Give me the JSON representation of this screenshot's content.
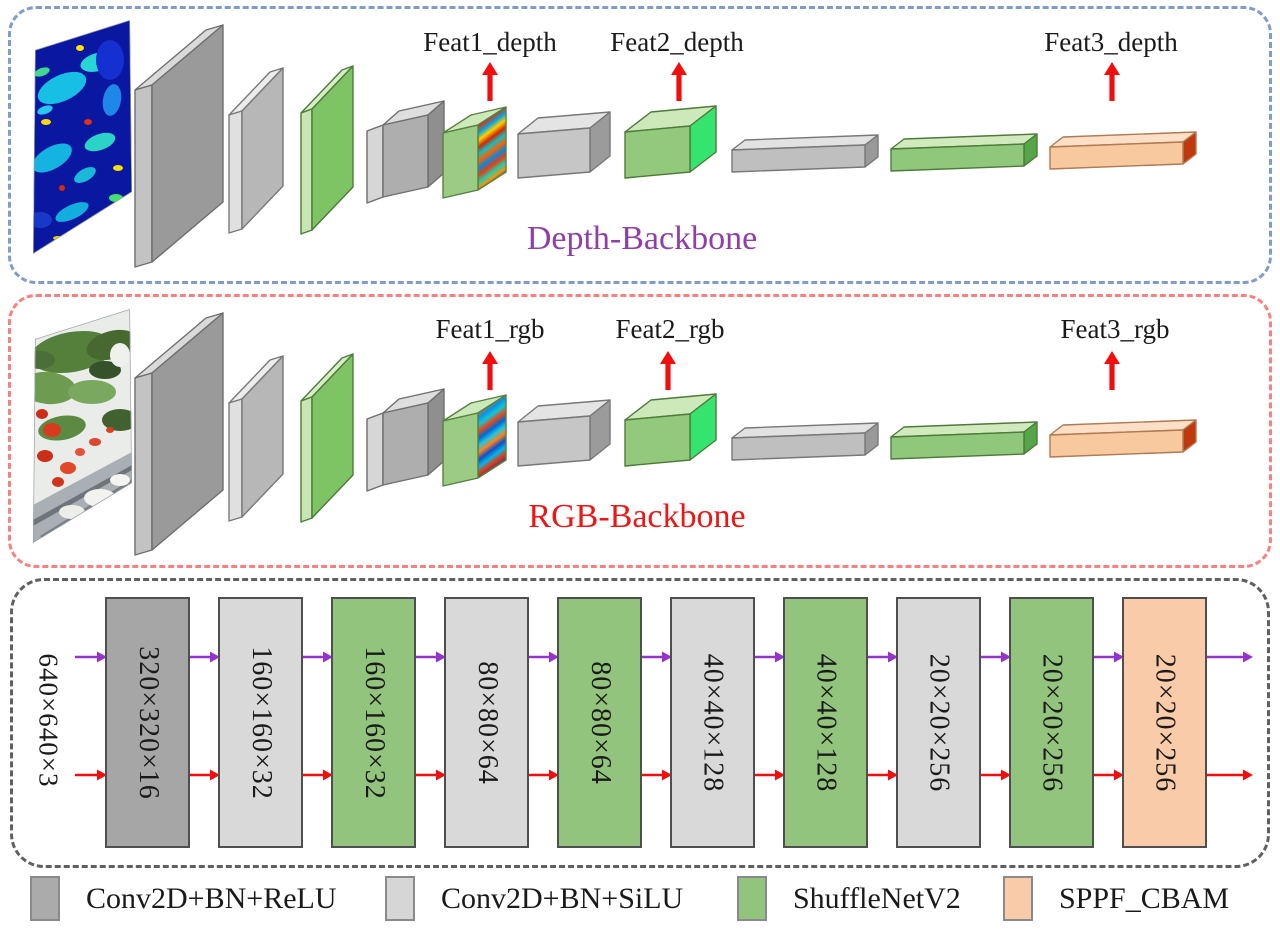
{
  "figure": {
    "depth_backbone": {
      "title": "Depth-Backbone",
      "feature_labels": [
        "Feat1_depth",
        "Feat2_depth",
        "Feat3_depth"
      ],
      "layer_types": [
        "conv_relu",
        "conv_silu",
        "shufflenetv2",
        "conv_silu",
        "shufflenetv2",
        "conv_silu",
        "shufflenetv2",
        "conv_silu",
        "shufflenetv2",
        "sppf_cbam"
      ]
    },
    "rgb_backbone": {
      "title": "RGB-Backbone",
      "feature_labels": [
        "Feat1_rgb",
        "Feat2_rgb",
        "Feat3_rgb"
      ],
      "layer_types": [
        "conv_relu",
        "conv_silu",
        "shufflenetv2",
        "conv_silu",
        "shufflenetv2",
        "conv_silu",
        "shufflenetv2",
        "conv_silu",
        "shufflenetv2",
        "sppf_cbam"
      ]
    },
    "flow": {
      "input_label": "640×640×3",
      "blocks": [
        {
          "label": "320×320×16",
          "type": "conv_relu"
        },
        {
          "label": "160×160×32",
          "type": "conv_silu"
        },
        {
          "label": "160×160×32",
          "type": "shufflenetv2"
        },
        {
          "label": "80×80×64",
          "type": "conv_silu"
        },
        {
          "label": "80×80×64",
          "type": "shufflenetv2"
        },
        {
          "label": "40×40×128",
          "type": "conv_silu"
        },
        {
          "label": "40×40×128",
          "type": "shufflenetv2"
        },
        {
          "label": "20×20×256",
          "type": "conv_silu"
        },
        {
          "label": "20×20×256",
          "type": "shufflenetv2"
        },
        {
          "label": "20×20×256",
          "type": "sppf_cbam"
        }
      ]
    },
    "legend": {
      "items": [
        {
          "label": "Conv2D+BN+ReLU",
          "type": "conv_relu",
          "color": "#ababab"
        },
        {
          "label": "Conv2D+BN+SiLU",
          "type": "conv_silu",
          "color": "#d6d6d6"
        },
        {
          "label": "ShuffleNetV2",
          "type": "shufflenetv2",
          "color": "#93c47d"
        },
        {
          "label": "SPPF_CBAM",
          "type": "sppf_cbam",
          "color": "#f9cba8"
        }
      ]
    },
    "colors": {
      "purple_arrow": "#9633cf",
      "red_arrow": "#f10e0e",
      "depth_panel_border": "#7e9ccc",
      "rgb_panel_border": "#f8817f",
      "flow_panel_border": "#606060",
      "depth_title": "#8e3fa8",
      "rgb_title": "#ee1515",
      "block_dark": "#a6a6a6",
      "block_light": "#d9d9d9",
      "block_green": "#93c47d",
      "block_orange": "#f9cba8"
    }
  }
}
